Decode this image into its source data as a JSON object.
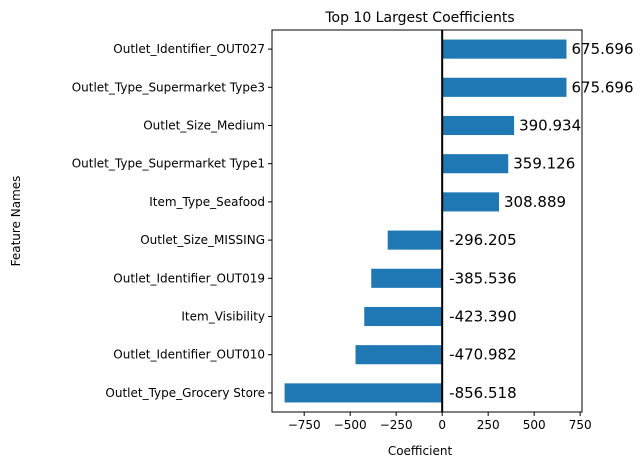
{
  "chart_data": {
    "type": "bar",
    "orientation": "horizontal",
    "title": "Top 10 Largest Coefficients",
    "xlabel": "Coefficient",
    "ylabel": "Feature Names",
    "categories": [
      "Outlet_Identifier_OUT027",
      "Outlet_Type_Supermarket Type3",
      "Outlet_Size_Medium",
      "Outlet_Type_Supermarket Type1",
      "Item_Type_Seafood",
      "Outlet_Size_MISSING",
      "Outlet_Identifier_OUT019",
      "Item_Visibility",
      "Outlet_Identifier_OUT010",
      "Outlet_Type_Grocery Store"
    ],
    "values": [
      675.696,
      675.696,
      390.934,
      359.126,
      308.889,
      -296.205,
      -385.536,
      -423.39,
      -470.982,
      -856.518
    ],
    "value_labels": [
      "675.696",
      "675.696",
      "390.934",
      "359.126",
      "308.889",
      "-296.205",
      "-385.536",
      "-423.390",
      "-470.982",
      "-856.518"
    ],
    "xlim": [
      -925,
      760
    ],
    "xticks": [
      -750,
      -500,
      -250,
      0,
      250,
      500,
      750
    ],
    "xtick_labels": [
      "−750",
      "−500",
      "−250",
      "0",
      "250",
      "500",
      "750"
    ],
    "grid": false,
    "zero_line": true,
    "colors": {
      "bar": "#1f77b4",
      "zero_line": "#000000",
      "axes": "#000000"
    }
  }
}
